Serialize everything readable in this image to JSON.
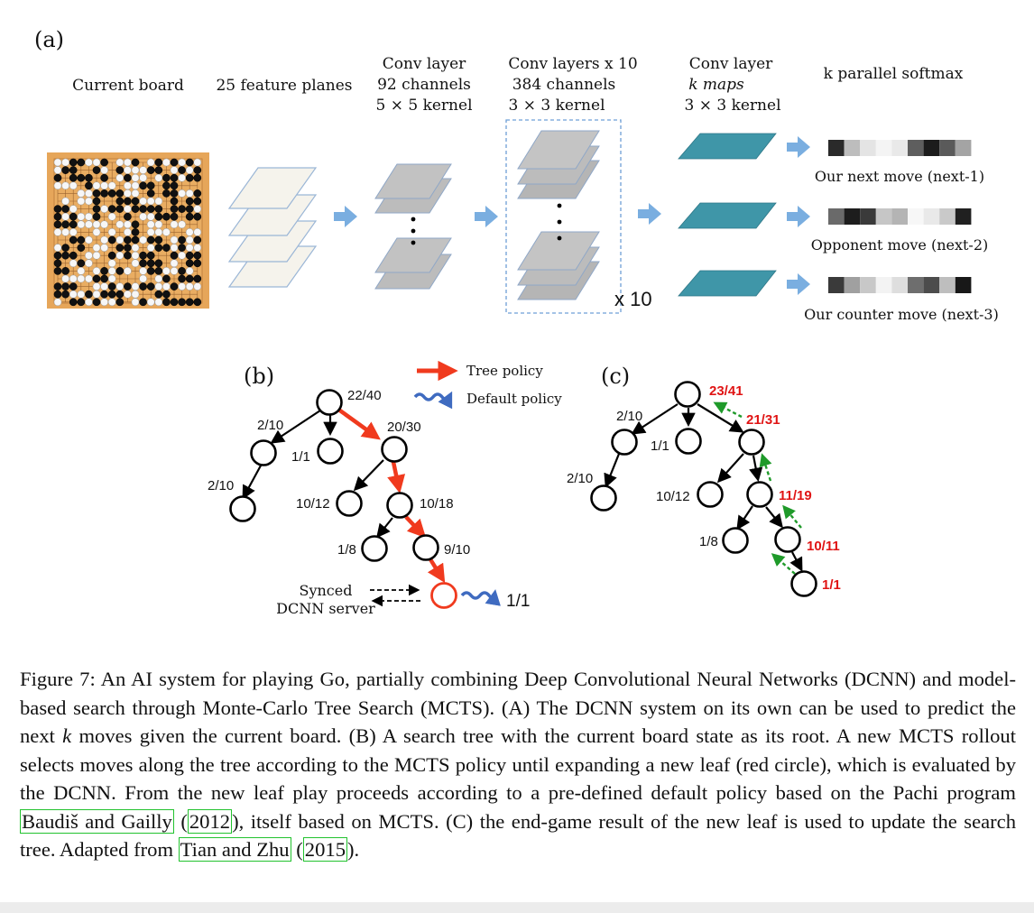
{
  "panel_a": {
    "label": "(a)",
    "headers": {
      "board": "Current board",
      "features": "25 feature planes",
      "conv1": [
        "Conv layer",
        "92 channels",
        "5 × 5 kernel"
      ],
      "conv10": [
        "Conv layers x 10",
        "384 channels",
        "3 × 3 kernel"
      ],
      "convk": [
        "Conv layer",
        "k maps",
        "3 × 3 kernel"
      ],
      "softmax": "k parallel softmax"
    },
    "repeat_label": "x 10",
    "outputs": [
      "Our next move (next-1)",
      "Opponent move (next-2)",
      "Our counter move (next-3)"
    ],
    "colors": {
      "feature_plane": "#f5f3ec",
      "conv_plane": "#b9b9b9",
      "kmap": "#3f96a8",
      "arrow": "#7aaee0",
      "board": "#e6a65a"
    }
  },
  "panel_b": {
    "label": "(b)",
    "legend": {
      "tree_policy": "Tree policy",
      "default_policy": "Default policy"
    },
    "node_labels": [
      "22/40",
      "2/10",
      "1/1",
      "20/30",
      "2/10",
      "10/12",
      "10/18",
      "1/8",
      "9/10"
    ],
    "server_label": [
      "Synced",
      "DCNN server"
    ],
    "rollout_result": "1/1",
    "colors": {
      "tree_policy": "#f03a1e",
      "default_policy": "#3f6bc0"
    }
  },
  "panel_c": {
    "label": "(c)",
    "node_labels": [
      "2/10",
      "1/1",
      "2/10",
      "10/12",
      "1/8"
    ],
    "updated_labels": [
      "23/41",
      "21/31",
      "11/19",
      "10/11",
      "1/1"
    ],
    "colors": {
      "updated": "#e01414",
      "backup_arrow": "#1f9a2a"
    }
  },
  "caption": {
    "part1": "Figure 7: An AI system for playing Go, partially combining Deep Convolutional Neural Networks (DCNN) and model-based search through Monte-Carlo Tree Search (MCTS). (A) The DCNN system on its own can be used to predict the next ",
    "k": "k",
    "part2": " moves given the current board. (B) A search tree with the current board state as its root. A new MCTS rollout selects moves along the tree according to the MCTS policy until expanding a new leaf (red circle), which is evaluated by the DCNN. From the new leaf play proceeds according to a pre-defined default policy based on the Pachi program ",
    "cite1_author": "Baudiš and Gailly",
    "cite1_open": " (",
    "cite1_year": "2012",
    "part3": "), itself based on MCTS. (C) the end-game result of the new leaf is used to update the search tree. Adapted from ",
    "cite2_author": "Tian and Zhu",
    "cite2_open": " (",
    "cite2_year": "2015",
    "part4": ")."
  }
}
